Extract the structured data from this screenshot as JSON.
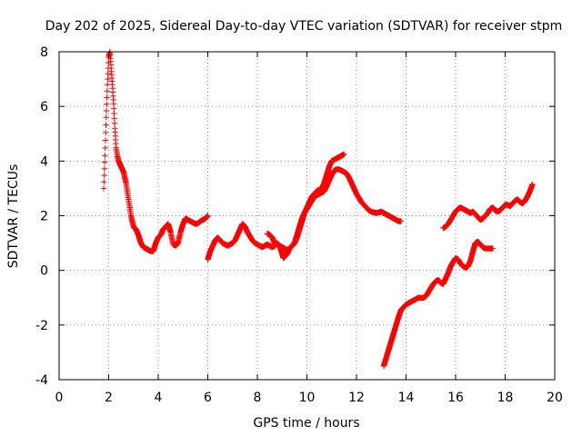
{
  "chart_data": {
    "type": "scatter",
    "title": "Day 202 of 2025, Sidereal Day-to-day VTEC variation (SDTVAR) for receiver stpm",
    "xlabel": "GPS time / hours",
    "ylabel": "SDTVAR / TECUs",
    "xlim": [
      0,
      20
    ],
    "ylim": [
      -4,
      8
    ],
    "xticks": [
      0,
      2,
      4,
      6,
      8,
      10,
      12,
      14,
      16,
      18,
      20
    ],
    "yticks": [
      -4,
      -2,
      0,
      2,
      4,
      6,
      8
    ],
    "grid": true,
    "marker": "+",
    "color": "#ff0000",
    "series": [
      {
        "name": "segment-1",
        "x": [
          1.8,
          1.85,
          1.9,
          1.95,
          2.0,
          2.05,
          2.1,
          2.15,
          2.2,
          2.25,
          2.3,
          2.35,
          2.4,
          2.5,
          2.6,
          2.7,
          2.8,
          2.9,
          3.0,
          3.1,
          3.2,
          3.3,
          3.4,
          3.5,
          3.6,
          3.7,
          3.8,
          3.9,
          4.0,
          4.1,
          4.2,
          4.3,
          4.4,
          4.5,
          4.6,
          4.7,
          4.8,
          4.9,
          5.0,
          5.1,
          5.2,
          5.3,
          5.4,
          5.5,
          5.6,
          5.7,
          5.8,
          5.9,
          6.0
        ],
        "y": [
          3.0,
          4.2,
          5.6,
          6.8,
          7.8,
          8.0,
          7.4,
          6.8,
          6.1,
          5.2,
          4.5,
          4.2,
          4.0,
          3.8,
          3.6,
          3.2,
          2.6,
          2.0,
          1.6,
          1.5,
          1.3,
          1.0,
          0.85,
          0.8,
          0.75,
          0.7,
          0.7,
          1.0,
          1.2,
          1.3,
          1.5,
          1.6,
          1.7,
          1.4,
          0.95,
          0.9,
          1.0,
          1.4,
          1.7,
          1.9,
          1.85,
          1.8,
          1.75,
          1.7,
          1.72,
          1.8,
          1.85,
          1.9,
          2.0
        ]
      },
      {
        "name": "segment-2",
        "x": [
          6.0,
          6.1,
          6.2,
          6.3,
          6.4,
          6.5,
          6.6,
          6.7,
          6.8,
          6.9,
          7.0,
          7.1,
          7.2,
          7.3,
          7.4,
          7.5,
          7.6,
          7.7,
          7.8,
          7.9,
          8.0,
          8.1,
          8.2,
          8.3,
          8.4,
          8.5,
          8.6,
          8.7,
          8.8,
          8.9,
          9.0,
          9.05,
          9.1,
          9.2,
          9.3,
          9.4,
          9.5,
          9.6,
          9.7,
          9.8,
          9.9,
          10.0,
          10.1,
          10.2,
          10.3,
          10.4,
          10.5,
          10.6,
          10.7,
          10.8,
          10.9,
          11.0,
          11.1,
          11.2,
          11.3,
          11.4,
          11.5
        ],
        "y": [
          0.4,
          0.7,
          0.9,
          1.1,
          1.2,
          1.1,
          1.0,
          0.95,
          0.9,
          0.95,
          1.0,
          1.1,
          1.3,
          1.5,
          1.7,
          1.6,
          1.4,
          1.25,
          1.1,
          1.0,
          0.95,
          0.9,
          0.85,
          0.9,
          0.95,
          0.9,
          0.85,
          0.9,
          1.0,
          0.9,
          0.6,
          0.45,
          0.5,
          0.6,
          0.8,
          0.9,
          1.0,
          1.2,
          1.5,
          1.8,
          2.1,
          2.3,
          2.5,
          2.7,
          2.8,
          2.9,
          2.95,
          3.0,
          3.2,
          3.5,
          3.8,
          4.0,
          4.05,
          4.1,
          4.15,
          4.2,
          4.25
        ]
      },
      {
        "name": "segment-3",
        "x": [
          8.4,
          8.5,
          8.6,
          8.7,
          8.8,
          8.9,
          9.0,
          9.1,
          9.2,
          9.3,
          9.4,
          9.5,
          9.6,
          9.7,
          9.8,
          9.9,
          10.0,
          10.1,
          10.2,
          10.3,
          10.4,
          10.5,
          10.6,
          10.7,
          10.8,
          10.9,
          11.0,
          11.1,
          11.2,
          11.3,
          11.4,
          11.5,
          11.6,
          11.7,
          11.8,
          11.9,
          12.0,
          12.1,
          12.2,
          12.3,
          12.4,
          12.5,
          12.6,
          12.7,
          12.8,
          12.9,
          13.0,
          13.1,
          13.2,
          13.3,
          13.4,
          13.5,
          13.6,
          13.7,
          13.8
        ],
        "y": [
          1.35,
          1.3,
          1.2,
          1.0,
          0.95,
          0.9,
          0.85,
          0.8,
          0.75,
          0.8,
          0.9,
          1.0,
          1.3,
          1.6,
          1.9,
          2.1,
          2.25,
          2.4,
          2.55,
          2.7,
          2.75,
          2.8,
          2.85,
          2.9,
          3.1,
          3.3,
          3.5,
          3.65,
          3.7,
          3.7,
          3.65,
          3.6,
          3.55,
          3.4,
          3.2,
          3.0,
          2.8,
          2.65,
          2.5,
          2.4,
          2.3,
          2.2,
          2.15,
          2.12,
          2.1,
          2.12,
          2.15,
          2.1,
          2.05,
          2.0,
          1.95,
          1.9,
          1.85,
          1.8,
          1.8
        ]
      },
      {
        "name": "segment-4",
        "x": [
          13.1,
          13.2,
          13.3,
          13.4,
          13.5,
          13.6,
          13.7,
          13.8,
          13.9,
          14.0,
          14.1,
          14.2,
          14.3,
          14.4,
          14.5,
          14.6,
          14.7,
          14.8,
          14.9,
          15.0,
          15.1,
          15.2,
          15.3,
          15.4,
          15.5,
          15.6,
          15.7,
          15.8,
          15.9,
          16.0,
          16.1,
          16.2,
          16.3,
          16.4,
          16.5,
          16.6,
          16.7,
          16.8,
          16.9,
          17.0,
          17.1,
          17.2,
          17.3,
          17.4,
          17.5
        ],
        "y": [
          -3.5,
          -3.2,
          -2.9,
          -2.6,
          -2.3,
          -2.0,
          -1.7,
          -1.45,
          -1.35,
          -1.25,
          -1.2,
          -1.15,
          -1.1,
          -1.05,
          -1.0,
          -1.0,
          -1.0,
          -0.95,
          -0.8,
          -0.65,
          -0.5,
          -0.4,
          -0.35,
          -0.45,
          -0.5,
          -0.3,
          -0.1,
          0.15,
          0.3,
          0.45,
          0.4,
          0.25,
          0.15,
          0.1,
          0.15,
          0.35,
          0.7,
          1.0,
          1.05,
          0.95,
          0.85,
          0.8,
          0.8,
          0.8,
          0.8
        ]
      },
      {
        "name": "segment-5",
        "x": [
          15.5,
          15.6,
          15.7,
          15.8,
          15.9,
          16.0,
          16.1,
          16.2,
          16.3,
          16.4,
          16.5,
          16.6,
          16.7,
          16.8,
          16.9,
          17.0,
          17.1,
          17.2,
          17.3,
          17.4,
          17.5,
          17.6,
          17.7,
          17.8,
          17.9,
          18.0,
          18.1,
          18.2,
          18.3,
          18.4,
          18.5,
          18.6,
          18.7,
          18.8,
          18.9,
          19.0,
          19.1
        ],
        "y": [
          1.55,
          1.6,
          1.7,
          1.85,
          2.0,
          2.15,
          2.25,
          2.3,
          2.25,
          2.2,
          2.15,
          2.1,
          2.15,
          2.05,
          1.95,
          1.85,
          1.9,
          2.0,
          2.1,
          2.25,
          2.3,
          2.2,
          2.15,
          2.2,
          2.3,
          2.4,
          2.4,
          2.35,
          2.45,
          2.55,
          2.6,
          2.5,
          2.45,
          2.55,
          2.7,
          2.9,
          3.15
        ]
      }
    ]
  }
}
